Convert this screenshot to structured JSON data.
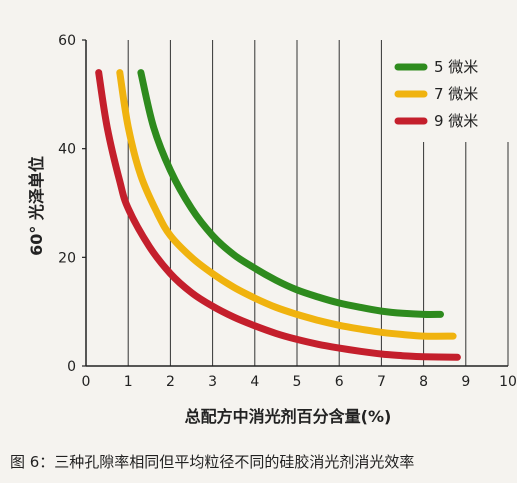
{
  "chart_data": {
    "type": "line",
    "title": "",
    "xlabel": "总配方中消光剂百分含量(%)",
    "ylabel": "60° 光泽单位",
    "xlim": [
      0,
      10
    ],
    "ylim": [
      0,
      60
    ],
    "x_ticks": [
      "0",
      "1",
      "2",
      "3",
      "4",
      "5",
      "6",
      "7",
      "8",
      "9",
      "10"
    ],
    "y_ticks": [
      "0",
      "20",
      "40",
      "60"
    ],
    "grid": "vertical",
    "legend_position": "top-right",
    "series": [
      {
        "name": "5 微米",
        "color": "#2e8b1e",
        "points": [
          [
            1.3,
            54
          ],
          [
            1.6,
            44
          ],
          [
            2.0,
            36
          ],
          [
            2.5,
            29
          ],
          [
            3.0,
            24
          ],
          [
            3.5,
            20.5
          ],
          [
            4.0,
            18
          ],
          [
            4.5,
            15.8
          ],
          [
            5.0,
            14
          ],
          [
            5.5,
            12.7
          ],
          [
            6.0,
            11.6
          ],
          [
            6.5,
            10.8
          ],
          [
            7.0,
            10.1
          ],
          [
            7.5,
            9.7
          ],
          [
            8.0,
            9.5
          ],
          [
            8.4,
            9.5
          ]
        ]
      },
      {
        "name": "7 微米",
        "color": "#f0b30f",
        "points": [
          [
            0.8,
            54
          ],
          [
            1.0,
            44
          ],
          [
            1.3,
            35
          ],
          [
            1.7,
            28
          ],
          [
            2.0,
            24
          ],
          [
            2.5,
            20
          ],
          [
            3.0,
            17
          ],
          [
            3.5,
            14.5
          ],
          [
            4.0,
            12.5
          ],
          [
            4.5,
            10.8
          ],
          [
            5.0,
            9.5
          ],
          [
            5.5,
            8.4
          ],
          [
            6.0,
            7.5
          ],
          [
            6.5,
            6.8
          ],
          [
            7.0,
            6.2
          ],
          [
            7.5,
            5.8
          ],
          [
            8.0,
            5.5
          ],
          [
            8.7,
            5.5
          ]
        ]
      },
      {
        "name": "9 微米",
        "color": "#c41f2c",
        "points": [
          [
            0.3,
            54
          ],
          [
            0.5,
            44
          ],
          [
            0.8,
            34
          ],
          [
            1.0,
            29
          ],
          [
            1.5,
            22
          ],
          [
            2.0,
            17
          ],
          [
            2.5,
            13.5
          ],
          [
            3.0,
            11
          ],
          [
            3.5,
            9
          ],
          [
            4.0,
            7.4
          ],
          [
            4.5,
            6
          ],
          [
            5.0,
            4.9
          ],
          [
            5.5,
            4
          ],
          [
            6.0,
            3.3
          ],
          [
            6.5,
            2.7
          ],
          [
            7.0,
            2.2
          ],
          [
            7.5,
            1.9
          ],
          [
            8.0,
            1.7
          ],
          [
            8.8,
            1.6
          ]
        ]
      }
    ]
  },
  "caption": "图 6：三种孔隙率相同但平均粒径不同的硅胶消光剂消光效率"
}
